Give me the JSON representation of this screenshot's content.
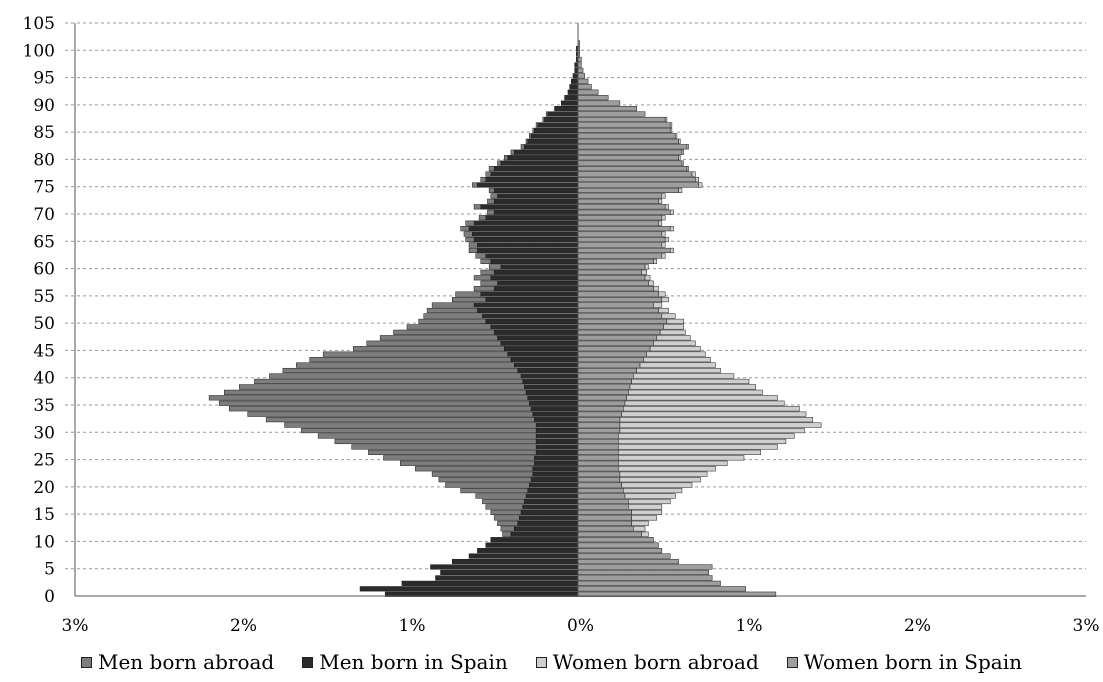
{
  "chart_data": {
    "type": "bar",
    "orientation": "horizontal",
    "layout": "population-pyramid",
    "title": "",
    "xlabel": "",
    "ylabel": "",
    "xlim": [
      -3,
      3
    ],
    "x_tick_labels": [
      "3%",
      "2%",
      "1%",
      "0%",
      "1%",
      "2%",
      "3%"
    ],
    "y_tick_labels": [
      "0",
      "5",
      "10",
      "15",
      "20",
      "25",
      "30",
      "35",
      "40",
      "45",
      "50",
      "55",
      "60",
      "65",
      "70",
      "75",
      "80",
      "85",
      "90",
      "95",
      "100",
      "105"
    ],
    "ylim": [
      0,
      105
    ],
    "grid": "horizontal dashed",
    "legend_position": "bottom",
    "ages": [
      0,
      1,
      2,
      3,
      4,
      5,
      6,
      7,
      8,
      9,
      10,
      11,
      12,
      13,
      14,
      15,
      16,
      17,
      18,
      19,
      20,
      21,
      22,
      23,
      24,
      25,
      26,
      27,
      28,
      29,
      30,
      31,
      32,
      33,
      34,
      35,
      36,
      37,
      38,
      39,
      40,
      41,
      42,
      43,
      44,
      45,
      46,
      47,
      48,
      49,
      50,
      51,
      52,
      53,
      54,
      55,
      56,
      57,
      58,
      59,
      60,
      61,
      62,
      63,
      64,
      65,
      66,
      67,
      68,
      69,
      70,
      71,
      72,
      73,
      74,
      75,
      76,
      77,
      78,
      79,
      80,
      81,
      82,
      83,
      84,
      85,
      86,
      87,
      88,
      89,
      90,
      91,
      92,
      93,
      94,
      95,
      96,
      97,
      98,
      99,
      100,
      101,
      102,
      103,
      104,
      105
    ],
    "series": [
      {
        "name": "Men born in Spain",
        "color": "#2b2b2b",
        "side": "left",
        "values": [
          1.15,
          1.3,
          1.05,
          0.85,
          0.82,
          0.88,
          0.75,
          0.65,
          0.6,
          0.55,
          0.52,
          0.4,
          0.38,
          0.36,
          0.35,
          0.34,
          0.33,
          0.32,
          0.31,
          0.3,
          0.29,
          0.28,
          0.27,
          0.27,
          0.26,
          0.26,
          0.25,
          0.25,
          0.25,
          0.25,
          0.25,
          0.25,
          0.26,
          0.27,
          0.28,
          0.29,
          0.3,
          0.31,
          0.32,
          0.33,
          0.34,
          0.36,
          0.38,
          0.4,
          0.42,
          0.44,
          0.46,
          0.48,
          0.5,
          0.52,
          0.55,
          0.57,
          0.6,
          0.62,
          0.55,
          0.58,
          0.5,
          0.48,
          0.52,
          0.5,
          0.46,
          0.52,
          0.55,
          0.6,
          0.6,
          0.62,
          0.63,
          0.65,
          0.62,
          0.55,
          0.5,
          0.58,
          0.5,
          0.48,
          0.5,
          0.6,
          0.55,
          0.52,
          0.5,
          0.46,
          0.42,
          0.38,
          0.32,
          0.3,
          0.28,
          0.26,
          0.24,
          0.2,
          0.18,
          0.14,
          0.1,
          0.08,
          0.06,
          0.05,
          0.04,
          0.03,
          0.02,
          0.02,
          0.01,
          0.01,
          0.01,
          0.0,
          0.0,
          0.0,
          0.0,
          0.0
        ]
      },
      {
        "name": "Men born abroad",
        "color": "#7d7d7d",
        "side": "left",
        "values": [
          0.0,
          0.0,
          0.0,
          0.0,
          0.0,
          0.0,
          0.0,
          0.0,
          0.0,
          0.0,
          0.0,
          0.05,
          0.08,
          0.12,
          0.15,
          0.18,
          0.22,
          0.25,
          0.3,
          0.4,
          0.5,
          0.55,
          0.6,
          0.7,
          0.8,
          0.9,
          1.0,
          1.1,
          1.2,
          1.3,
          1.4,
          1.5,
          1.6,
          1.7,
          1.8,
          1.85,
          1.9,
          1.8,
          1.7,
          1.6,
          1.5,
          1.4,
          1.3,
          1.2,
          1.1,
          0.9,
          0.8,
          0.7,
          0.6,
          0.5,
          0.4,
          0.35,
          0.3,
          0.25,
          0.2,
          0.15,
          0.12,
          0.1,
          0.1,
          0.08,
          0.07,
          0.06,
          0.06,
          0.05,
          0.05,
          0.05,
          0.05,
          0.05,
          0.05,
          0.04,
          0.04,
          0.04,
          0.04,
          0.04,
          0.03,
          0.03,
          0.03,
          0.03,
          0.03,
          0.02,
          0.02,
          0.02,
          0.02,
          0.01,
          0.01,
          0.01,
          0.01,
          0.01,
          0.01,
          0.0,
          0.0,
          0.0,
          0.0,
          0.0,
          0.0,
          0.0,
          0.0,
          0.0,
          0.0,
          0.0,
          0.0,
          0.0,
          0.0,
          0.0,
          0.0,
          0.0
        ]
      },
      {
        "name": "Women born in Spain",
        "color": "#9e9e9e",
        "side": "right",
        "values": [
          1.18,
          1.0,
          0.85,
          0.8,
          0.78,
          0.8,
          0.6,
          0.55,
          0.5,
          0.48,
          0.45,
          0.38,
          0.33,
          0.32,
          0.32,
          0.32,
          0.3,
          0.3,
          0.28,
          0.27,
          0.26,
          0.25,
          0.25,
          0.24,
          0.24,
          0.24,
          0.24,
          0.24,
          0.24,
          0.24,
          0.25,
          0.25,
          0.25,
          0.26,
          0.27,
          0.28,
          0.29,
          0.3,
          0.31,
          0.32,
          0.33,
          0.35,
          0.37,
          0.39,
          0.41,
          0.43,
          0.45,
          0.47,
          0.49,
          0.51,
          0.53,
          0.5,
          0.48,
          0.45,
          0.5,
          0.48,
          0.45,
          0.42,
          0.4,
          0.38,
          0.4,
          0.45,
          0.5,
          0.55,
          0.5,
          0.52,
          0.5,
          0.55,
          0.48,
          0.5,
          0.55,
          0.52,
          0.48,
          0.5,
          0.6,
          0.72,
          0.7,
          0.68,
          0.65,
          0.62,
          0.6,
          0.62,
          0.65,
          0.6,
          0.58,
          0.55,
          0.55,
          0.52,
          0.4,
          0.35,
          0.25,
          0.18,
          0.12,
          0.08,
          0.06,
          0.04,
          0.03,
          0.02,
          0.02,
          0.01,
          0.01,
          0.01,
          0.0,
          0.0,
          0.0,
          0.0
        ]
      },
      {
        "name": "Women born abroad",
        "color": "#cfcfcf",
        "side": "right",
        "values": [
          0.0,
          0.0,
          0.0,
          0.0,
          0.0,
          0.0,
          0.0,
          0.0,
          0.0,
          0.0,
          0.0,
          0.04,
          0.07,
          0.1,
          0.15,
          0.18,
          0.2,
          0.25,
          0.3,
          0.35,
          0.42,
          0.48,
          0.52,
          0.58,
          0.65,
          0.75,
          0.85,
          0.95,
          1.0,
          1.05,
          1.1,
          1.2,
          1.15,
          1.1,
          1.05,
          0.95,
          0.9,
          0.8,
          0.75,
          0.7,
          0.6,
          0.5,
          0.45,
          0.4,
          0.35,
          0.3,
          0.25,
          0.2,
          0.15,
          0.12,
          0.1,
          0.08,
          0.06,
          0.05,
          0.04,
          0.04,
          0.03,
          0.03,
          0.03,
          0.03,
          0.02,
          0.02,
          0.02,
          0.02,
          0.02,
          0.02,
          0.02,
          0.02,
          0.02,
          0.02,
          0.02,
          0.02,
          0.02,
          0.02,
          0.02,
          0.02,
          0.02,
          0.02,
          0.01,
          0.01,
          0.01,
          0.01,
          0.01,
          0.01,
          0.01,
          0.01,
          0.01,
          0.01,
          0.0,
          0.0,
          0.0,
          0.0,
          0.0,
          0.0,
          0.0,
          0.0,
          0.0,
          0.0,
          0.0,
          0.0,
          0.0,
          0.0,
          0.0,
          0.0,
          0.0,
          0.0
        ]
      }
    ],
    "legend": [
      {
        "label": "Men born abroad",
        "color": "#7d7d7d"
      },
      {
        "label": "Men born in Spain",
        "color": "#2b2b2b"
      },
      {
        "label": "Women born abroad",
        "color": "#cfcfcf"
      },
      {
        "label": "Women born in Spain",
        "color": "#9e9e9e"
      }
    ]
  }
}
